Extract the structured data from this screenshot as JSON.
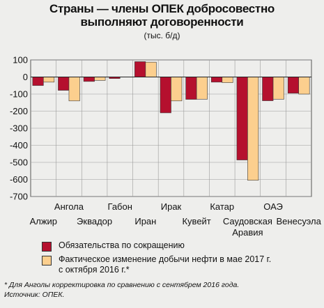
{
  "title_line1": "Страны — члены ОПЕК добросовестно",
  "title_line2": "выполняют договоренности",
  "subtitle": "(тыс. б/д)",
  "legend": {
    "series1": "Обязательства по сокращению",
    "series2_line1": "Фактическое изменение добычи нефти в мае 2017 г.",
    "series2_line2": "с октября 2016 г.*"
  },
  "footnote": "* Для Анголы корректировка по сравнению с сентябрем 2016 года.",
  "source": "Источник: ОПЕК.",
  "colors": {
    "series1": "#b5102e",
    "series2": "#fccf8e",
    "background": "#eeeeec"
  },
  "chart_data": {
    "type": "bar",
    "categories": [
      "Алжир",
      "Ангола",
      "Эквадор",
      "Габон",
      "Иран",
      "Ирак",
      "Кувейт",
      "Катар",
      "Саудовская Аравия",
      "ОАЭ",
      "Венесуэла"
    ],
    "category_label_lines": [
      [
        "Алжир"
      ],
      [
        "Ангола"
      ],
      [
        "Эквадор"
      ],
      [
        "Габон"
      ],
      [
        "Иран"
      ],
      [
        "Ирак"
      ],
      [
        "Кувейт"
      ],
      [
        "Катар"
      ],
      [
        "Саудовская",
        "Аравия"
      ],
      [
        "ОАЭ"
      ],
      [
        "Венесуэла"
      ]
    ],
    "series": [
      {
        "name": "Обязательства по сокращению",
        "values": [
          -50,
          -78,
          -26,
          -9,
          90,
          -210,
          -131,
          -30,
          -486,
          -139,
          -95
        ]
      },
      {
        "name": "Фактическое изменение добычи нефти в мае 2017 г. с октября 2016 г.*",
        "values": [
          -30,
          -140,
          -20,
          0,
          87,
          -140,
          -130,
          -33,
          -605,
          -130,
          -100
        ]
      }
    ],
    "ylim": [
      -700,
      100
    ],
    "yticks": [
      100,
      0,
      -100,
      -200,
      -300,
      -400,
      -500,
      -600,
      -700
    ],
    "ytick_labels": [
      "100",
      "0",
      "-100",
      "-200",
      "-300",
      "-400",
      "-500",
      "-600",
      "-700"
    ],
    "grid": true,
    "legend_position": "bottom"
  }
}
